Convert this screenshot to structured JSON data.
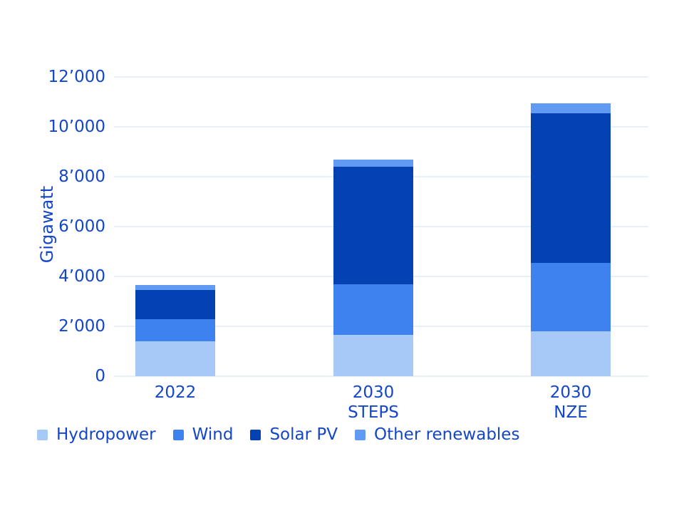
{
  "chart_data": {
    "type": "bar",
    "stacked": true,
    "title": "",
    "ylabel": "Gigawatt",
    "categories": [
      [
        "2022"
      ],
      [
        "2030",
        "STEPS"
      ],
      [
        "2030",
        "NZE"
      ]
    ],
    "series": [
      {
        "name": "Hydropower",
        "color": "#a6c9f8",
        "values": [
          1400,
          1650,
          1800
        ]
      },
      {
        "name": "Wind",
        "color": "#3d82ef",
        "values": [
          900,
          2050,
          2750
        ]
      },
      {
        "name": "Solar PV",
        "color": "#0441b3",
        "values": [
          1150,
          4700,
          6000
        ]
      },
      {
        "name": "Other renewables",
        "color": "#619af3",
        "values": [
          200,
          300,
          400
        ]
      }
    ],
    "stack_order": "bottom-to-top",
    "totals": [
      3650,
      8700,
      10950
    ],
    "ylim": [
      0,
      12000
    ],
    "yticks": [
      {
        "value": 0,
        "label": "0"
      },
      {
        "value": 2000,
        "label": "2’000"
      },
      {
        "value": 4000,
        "label": "4’000"
      },
      {
        "value": 6000,
        "label": "6’000"
      },
      {
        "value": 8000,
        "label": "8’000"
      },
      {
        "value": 10000,
        "label": "10’000"
      },
      {
        "value": 12000,
        "label": "12’000"
      }
    ],
    "grid": true,
    "legend_position": "bottom-left",
    "colors": {
      "text": "#1446c9",
      "gridline": "#e7f1fb",
      "background": "#ffffff"
    }
  }
}
